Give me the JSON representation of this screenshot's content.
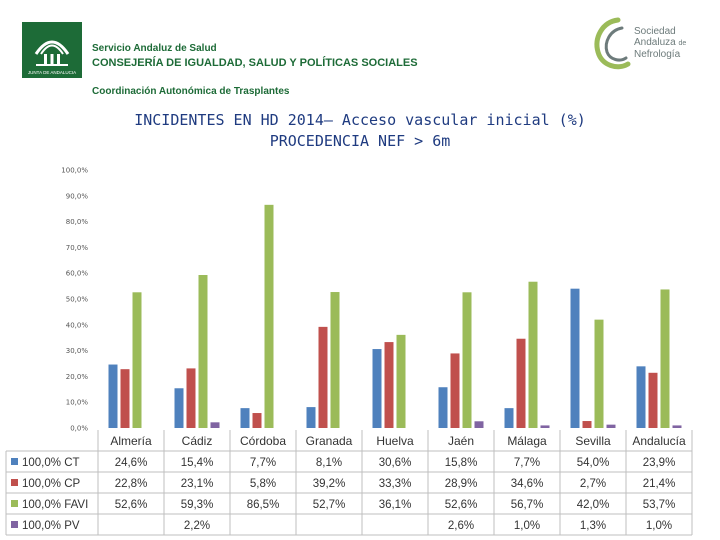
{
  "header": {
    "org_line1": "Servicio Andaluz de Salud",
    "org_line2": "CONSEJERÍA DE IGUALDAD, SALUD Y POLÍTICAS SOCIALES",
    "org_line3": "Coordinación Autonómica de Trasplantes",
    "logo_caption": "JUNTA DE ANDALUCIA",
    "society_line1": "Sociedad",
    "society_line2": "Andaluza",
    "society_line2b": "de",
    "society_line3": "Nefrología"
  },
  "colors": {
    "green_brand": "#1d6b37",
    "title_blue": "#1f3b80",
    "series": [
      "#4f81bd",
      "#c0504d",
      "#9bbb59",
      "#8064a2"
    ]
  },
  "chart_data": {
    "type": "bar",
    "title_line1": "INCIDENTES EN HD 2014– Acceso vascular inicial  (%)",
    "title_line2": "PROCEDENCIA NEF > 6m",
    "categories": [
      "Almería",
      "Cádiz",
      "Córdoba",
      "Granada",
      "Huelva",
      "Jaén",
      "Málaga",
      "Sevilla",
      "Andalucía"
    ],
    "yticks": [
      "0,0%",
      "10,0%",
      "20,0%",
      "30,0%",
      "40,0%",
      "50,0%",
      "60,0%",
      "70,0%",
      "80,0%",
      "90,0%",
      "100,0%"
    ],
    "ylim": [
      0,
      100
    ],
    "legend_position": "left (data table)",
    "series": [
      {
        "name": "100,0% CT",
        "values": [
          24.6,
          15.4,
          7.7,
          8.1,
          30.6,
          15.8,
          7.7,
          54.0,
          23.9
        ],
        "labels": [
          "24,6%",
          "15,4%",
          "7,7%",
          "8,1%",
          "30,6%",
          "15,8%",
          "7,7%",
          "54,0%",
          "23,9%"
        ]
      },
      {
        "name": "100,0% CP",
        "values": [
          22.8,
          23.1,
          5.8,
          39.2,
          33.3,
          28.9,
          34.6,
          2.7,
          21.4
        ],
        "labels": [
          "22,8%",
          "23,1%",
          "5,8%",
          "39,2%",
          "33,3%",
          "28,9%",
          "34,6%",
          "2,7%",
          "21,4%"
        ]
      },
      {
        "name": "100,0% FAVI",
        "values": [
          52.6,
          59.3,
          86.5,
          52.7,
          36.1,
          52.6,
          56.7,
          42.0,
          53.7
        ],
        "labels": [
          "52,6%",
          "59,3%",
          "86,5%",
          "52,7%",
          "36,1%",
          "52,6%",
          "56,7%",
          "42,0%",
          "53,7%"
        ]
      },
      {
        "name": "100,0% PV",
        "values": [
          null,
          2.2,
          null,
          null,
          null,
          2.6,
          1.0,
          1.3,
          1.0
        ],
        "labels": [
          "",
          "2,2%",
          "",
          "",
          "",
          "2,6%",
          "1,0%",
          "1,3%",
          "1,0%"
        ]
      }
    ]
  }
}
